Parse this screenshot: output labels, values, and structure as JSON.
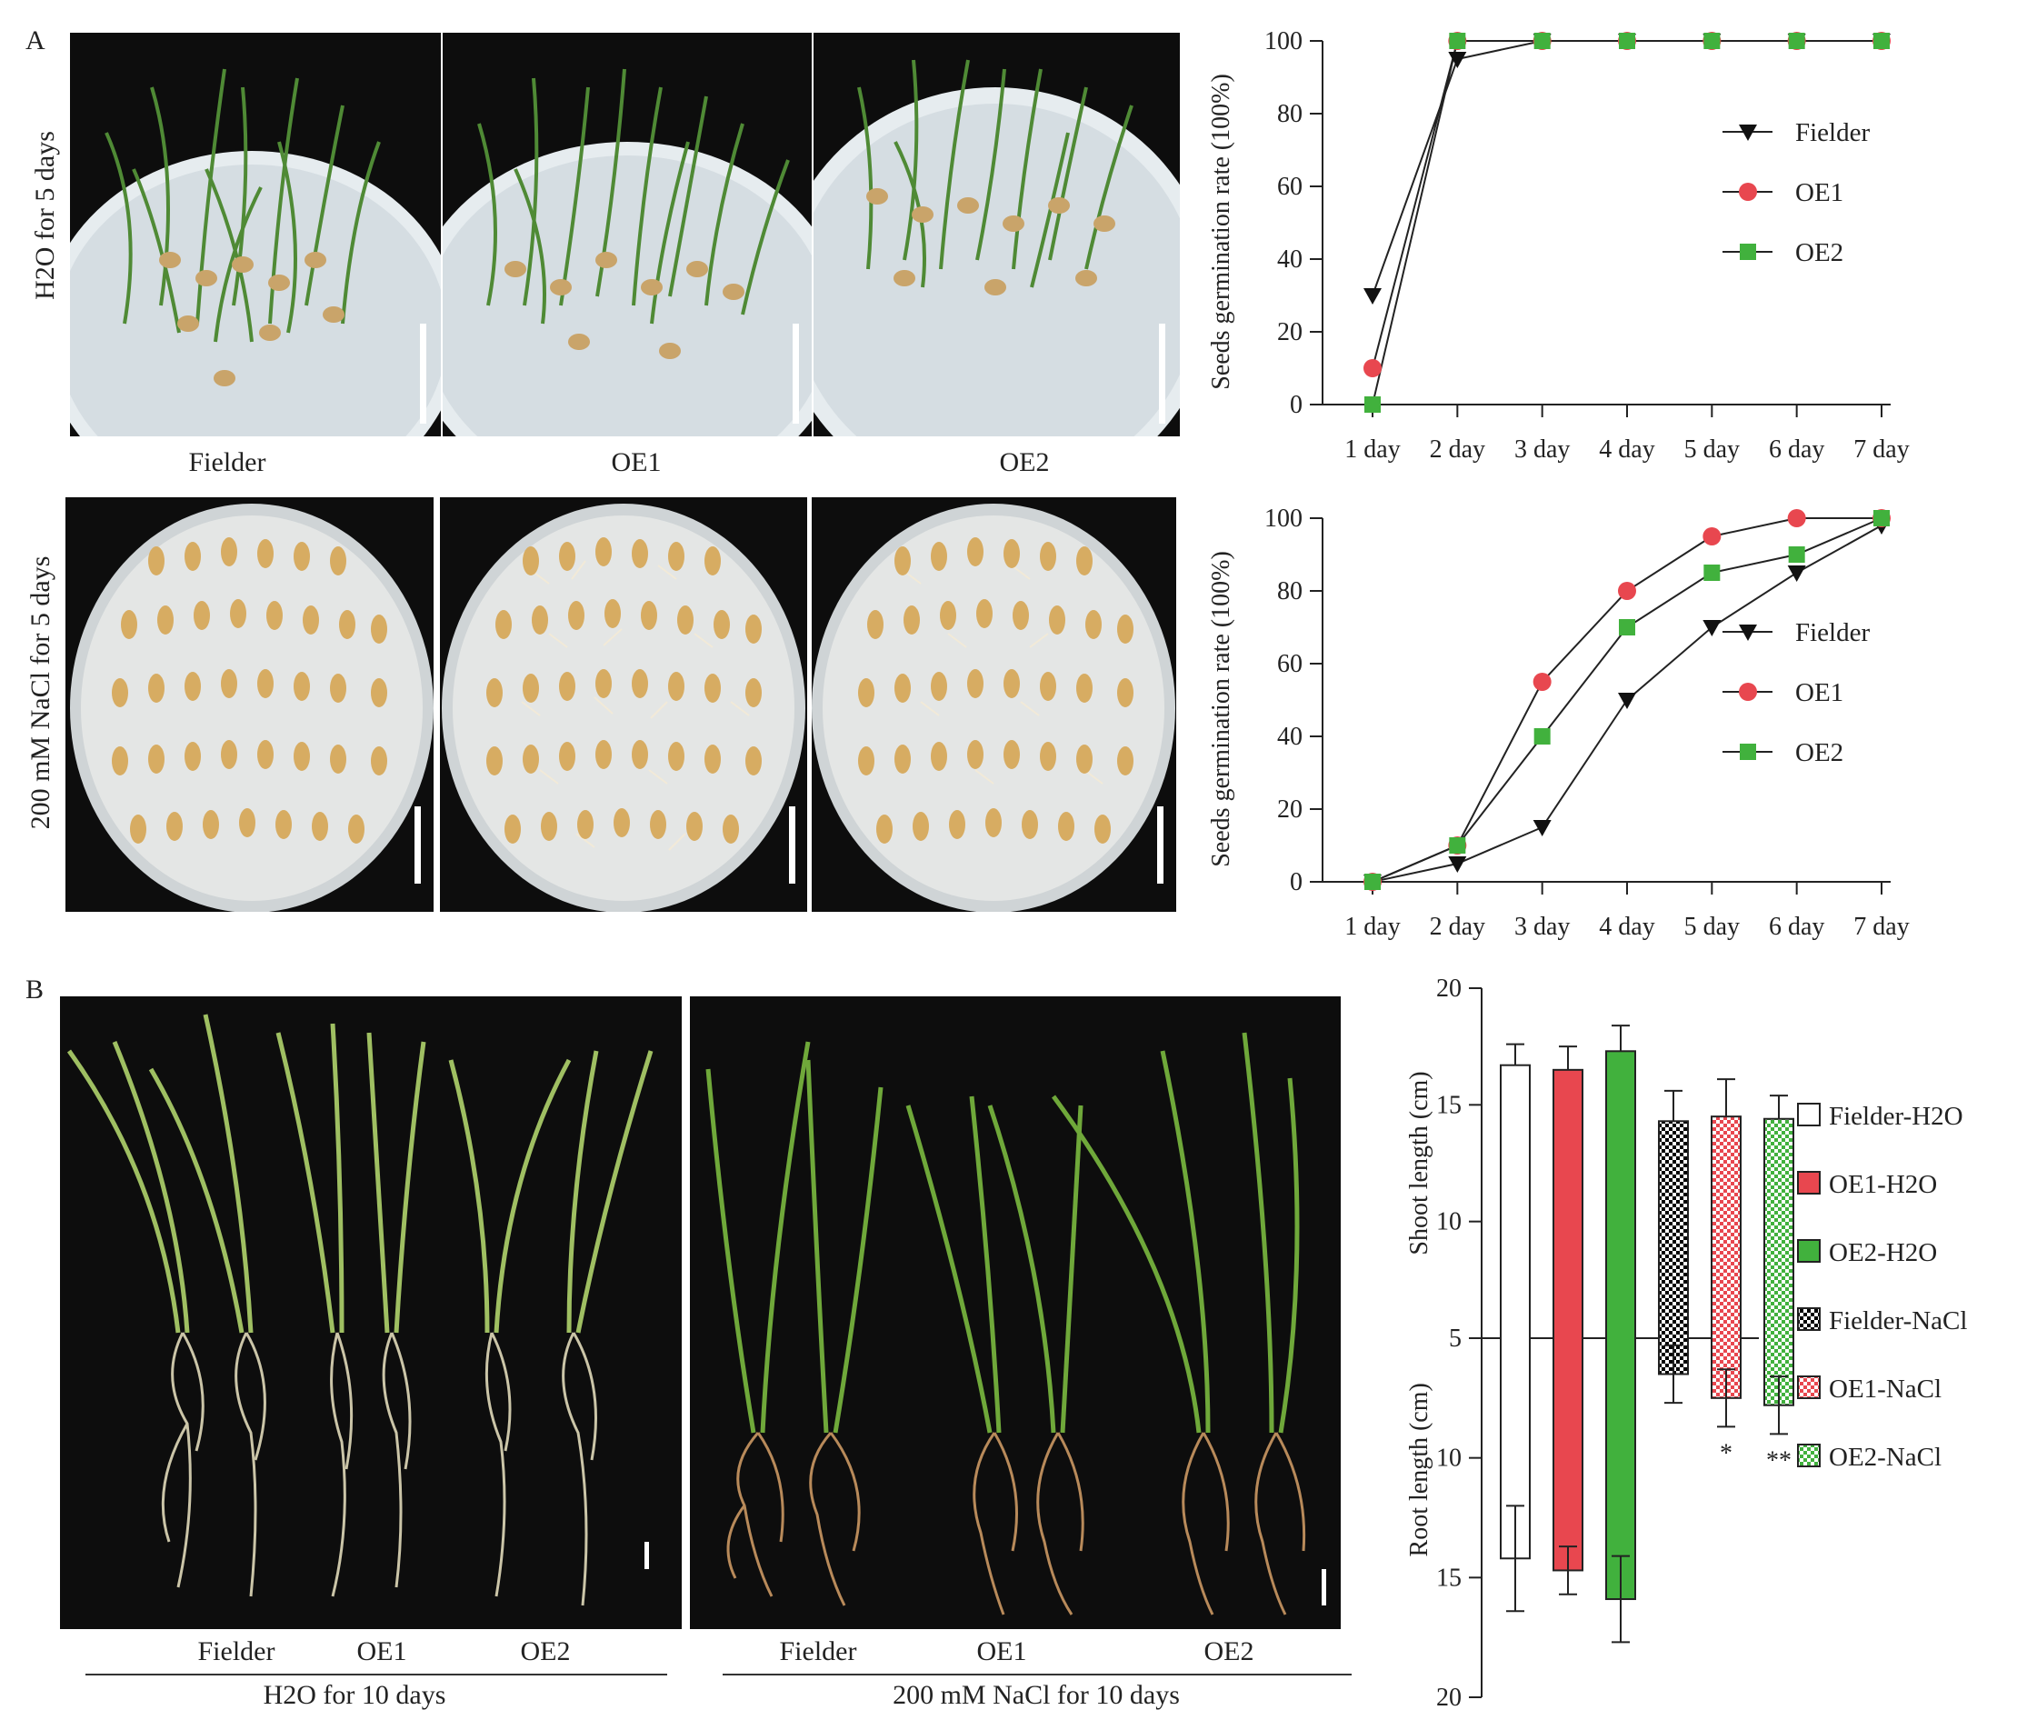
{
  "panel_labels": {
    "a": "A",
    "b": "B"
  },
  "panel_a": {
    "row1_condition": "H2O for 5 days",
    "row2_condition": "200 mM NaCl for 5 days",
    "genotypes": [
      "Fielder",
      "OE1",
      "OE2"
    ]
  },
  "panel_b": {
    "left_condition": "H2O for 10 days",
    "right_condition": "200 mM NaCl for 10 days",
    "left_genotypes": [
      "Fielder",
      "OE1",
      "OE2"
    ],
    "right_genotypes": [
      "Fielder",
      "OE1",
      "OE2"
    ]
  },
  "colors": {
    "fielder": "#111111",
    "oe1": "#e8474f",
    "oe2": "#41b13d",
    "axis": "#222222"
  },
  "chart_data": [
    {
      "type": "line",
      "title": "",
      "xlabel": "",
      "ylabel": "Seeds germination rate (100%)",
      "categories": [
        "1 day",
        "2 day",
        "3 day",
        "4 day",
        "5 day",
        "6 day",
        "7 day"
      ],
      "yticks": [
        0,
        20,
        40,
        60,
        80,
        100
      ],
      "ylim": [
        0,
        100
      ],
      "legend_position": "right",
      "series": [
        {
          "name": "Fielder",
          "marker": "triangle-down",
          "values": [
            30,
            95,
            100,
            100,
            100,
            100,
            100
          ]
        },
        {
          "name": "OE1",
          "marker": "circle",
          "values": [
            10,
            100,
            100,
            100,
            100,
            100,
            100
          ]
        },
        {
          "name": "OE2",
          "marker": "square",
          "values": [
            0,
            100,
            100,
            100,
            100,
            100,
            100
          ]
        }
      ]
    },
    {
      "type": "line",
      "title": "",
      "xlabel": "",
      "ylabel": "Seeds germination rate (100%)",
      "categories": [
        "1 day",
        "2 day",
        "3 day",
        "4 day",
        "5 day",
        "6 day",
        "7 day"
      ],
      "yticks": [
        0,
        20,
        40,
        60,
        80,
        100
      ],
      "ylim": [
        0,
        100
      ],
      "legend_position": "right",
      "series": [
        {
          "name": "Fielder",
          "marker": "triangle-down",
          "values": [
            0,
            5,
            15,
            50,
            70,
            85,
            98
          ]
        },
        {
          "name": "OE1",
          "marker": "circle",
          "values": [
            0,
            10,
            55,
            80,
            95,
            100,
            100
          ]
        },
        {
          "name": "OE2",
          "marker": "square",
          "values": [
            0,
            10,
            40,
            70,
            85,
            90,
            100
          ]
        }
      ]
    },
    {
      "type": "bar",
      "title": "",
      "ylabel_top": "Shoot length (cm)",
      "ylabel_bottom": "Root length (cm)",
      "shoot_ticks": [
        20,
        15,
        10,
        5
      ],
      "root_ticks": [
        10,
        15,
        20
      ],
      "baseline": 5,
      "legend_position": "right",
      "series": [
        {
          "name": "Fielder-H2O",
          "pattern": "open",
          "shoot": 16.7,
          "shoot_err": 0.9,
          "root": 14.2,
          "root_err": 2.2,
          "sig": ""
        },
        {
          "name": "OE1-H2O",
          "pattern": "red",
          "shoot": 16.5,
          "shoot_err": 1.0,
          "root": 14.7,
          "root_err": 1.0,
          "sig": ""
        },
        {
          "name": "OE2-H2O",
          "pattern": "green",
          "shoot": 17.3,
          "shoot_err": 1.1,
          "root": 15.9,
          "root_err": 1.8,
          "sig": ""
        },
        {
          "name": "Fielder-NaCl",
          "pattern": "black-check",
          "shoot": 14.3,
          "shoot_err": 1.3,
          "root": 6.5,
          "root_err": 1.2,
          "sig": ""
        },
        {
          "name": "OE1-NaCl",
          "pattern": "red-check",
          "shoot": 14.5,
          "shoot_err": 1.6,
          "root": 7.5,
          "root_err": 1.2,
          "sig": "*"
        },
        {
          "name": "OE2-NaCl",
          "pattern": "green-check",
          "shoot": 14.4,
          "shoot_err": 1.0,
          "root": 7.8,
          "root_err": 1.2,
          "sig": "**"
        }
      ]
    }
  ]
}
